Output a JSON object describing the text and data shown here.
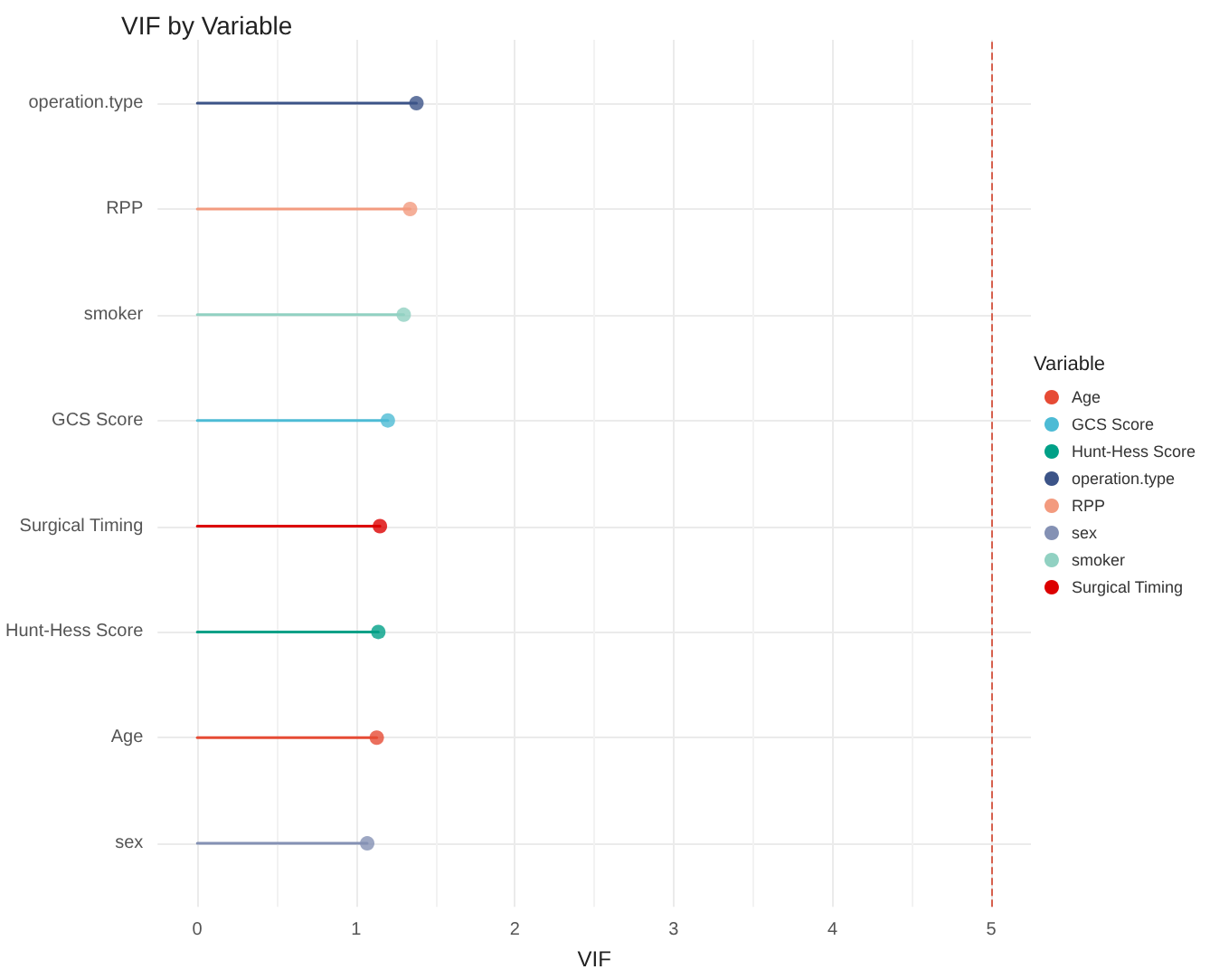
{
  "chart_data": {
    "type": "lollipop",
    "title": "VIF by Variable",
    "xlabel": "VIF",
    "legend_title": "Variable",
    "orientation": "horizontal",
    "categories": [
      "operation.type",
      "RPP",
      "smoker",
      "GCS Score",
      "Surgical Timing",
      "Hunt-Hess Score",
      "Age",
      "sex"
    ],
    "series": [
      {
        "name": "Age",
        "color": "#e64b35",
        "values": [
          null,
          null,
          null,
          null,
          null,
          null,
          1.13,
          null
        ]
      },
      {
        "name": "GCS Score",
        "color": "#4dbbd5",
        "values": [
          null,
          null,
          null,
          1.2,
          null,
          null,
          null,
          null
        ]
      },
      {
        "name": "Hunt-Hess Score",
        "color": "#00a087",
        "values": [
          null,
          null,
          null,
          null,
          null,
          1.14,
          null,
          null
        ]
      },
      {
        "name": "operation.type",
        "color": "#3c5488",
        "values": [
          1.38,
          null,
          null,
          null,
          null,
          null,
          null,
          null
        ]
      },
      {
        "name": "RPP",
        "color": "#f39b7f",
        "values": [
          null,
          1.34,
          null,
          null,
          null,
          null,
          null,
          null
        ]
      },
      {
        "name": "sex",
        "color": "#8491b4",
        "values": [
          null,
          null,
          null,
          null,
          null,
          null,
          null,
          1.07
        ]
      },
      {
        "name": "smoker",
        "color": "#91d1c2",
        "values": [
          null,
          null,
          1.3,
          null,
          null,
          null,
          null,
          null
        ]
      },
      {
        "name": "Surgical Timing",
        "color": "#dc0000",
        "values": [
          null,
          null,
          null,
          null,
          1.15,
          null,
          null,
          null
        ]
      }
    ],
    "xlim": [
      -0.25,
      5.25
    ],
    "xticks": [
      0,
      1,
      2,
      3,
      4,
      5
    ],
    "ref_lines": [
      {
        "axis": "x",
        "value": 5,
        "color": "#d6604d",
        "line_style": "dashed"
      }
    ],
    "grid": true,
    "legend": "right",
    "marker": "circle"
  }
}
